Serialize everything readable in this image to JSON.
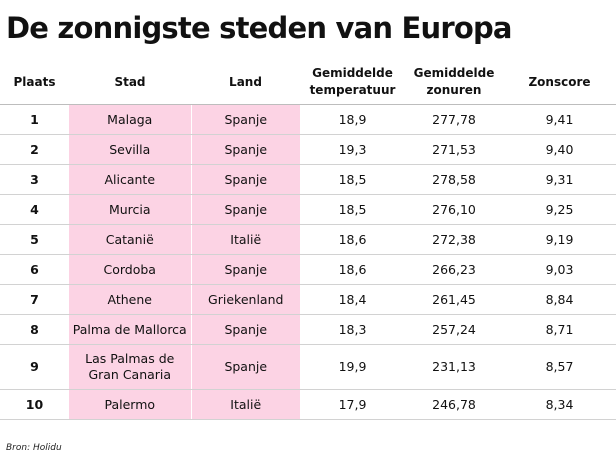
{
  "title": "De zonnigste steden van Europa",
  "colors": {
    "highlight": "#fcd3e4",
    "text": "#111111",
    "rule": "#d2d2d2"
  },
  "table": {
    "headers": {
      "rank": "Plaats",
      "city": "Stad",
      "country": "Land",
      "temperature": [
        "Gemiddelde",
        "temperatuur"
      ],
      "sun_hours": [
        "Gemiddelde",
        "zonuren"
      ],
      "score": "Zonscore"
    },
    "rows": [
      {
        "rank": "1",
        "city": [
          "Malaga"
        ],
        "country": "Spanje",
        "temperature": "18,9",
        "sun_hours": "277,78",
        "score": "9,41"
      },
      {
        "rank": "2",
        "city": [
          "Sevilla"
        ],
        "country": "Spanje",
        "temperature": "19,3",
        "sun_hours": "271,53",
        "score": "9,40"
      },
      {
        "rank": "3",
        "city": [
          "Alicante"
        ],
        "country": "Spanje",
        "temperature": "18,5",
        "sun_hours": "278,58",
        "score": "9,31"
      },
      {
        "rank": "4",
        "city": [
          "Murcia"
        ],
        "country": "Spanje",
        "temperature": "18,5",
        "sun_hours": "276,10",
        "score": "9,25"
      },
      {
        "rank": "5",
        "city": [
          "Catanië"
        ],
        "country": "Italië",
        "temperature": "18,6",
        "sun_hours": "272,38",
        "score": "9,19"
      },
      {
        "rank": "6",
        "city": [
          "Cordoba"
        ],
        "country": "Spanje",
        "temperature": "18,6",
        "sun_hours": "266,23",
        "score": "9,03"
      },
      {
        "rank": "7",
        "city": [
          "Athene"
        ],
        "country": "Griekenland",
        "temperature": "18,4",
        "sun_hours": "261,45",
        "score": "8,84"
      },
      {
        "rank": "8",
        "city": [
          "Palma de Mallorca"
        ],
        "country": "Spanje",
        "temperature": "18,3",
        "sun_hours": "257,24",
        "score": "8,71"
      },
      {
        "rank": "9",
        "city": [
          "Las Palmas de",
          "Gran Canaria"
        ],
        "country": "Spanje",
        "temperature": "19,9",
        "sun_hours": "231,13",
        "score": "8,57"
      },
      {
        "rank": "10",
        "city": [
          "Palermo"
        ],
        "country": "Italië",
        "temperature": "17,9",
        "sun_hours": "246,78",
        "score": "8,34"
      }
    ]
  },
  "source": "Bron: Holidu"
}
